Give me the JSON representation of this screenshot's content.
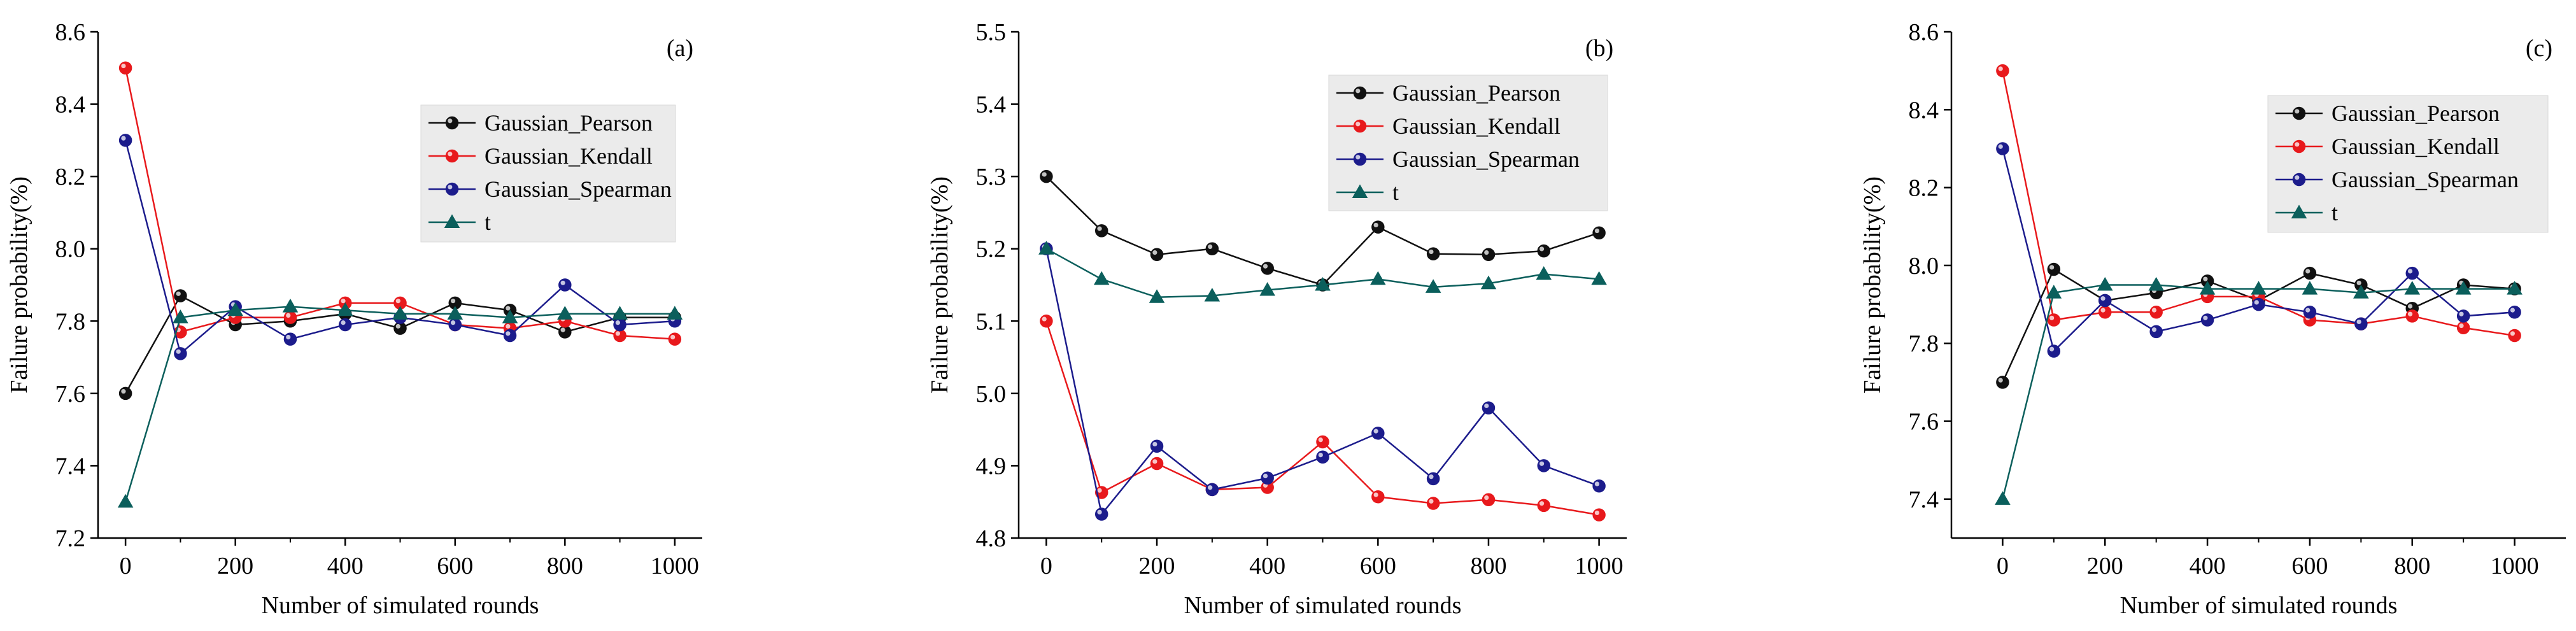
{
  "colors": {
    "Gaussian_Pearson": "#111111",
    "Gaussian_Kendall": "#e8191c",
    "Gaussian_Spearman": "#1c1c8c",
    "t": "#0b5f5c",
    "legend_bg": "#ebebeb"
  },
  "chart_data": [
    {
      "type": "line",
      "label": "(a)",
      "xlabel": "Number of simulated rounds",
      "ylabel": "Failure probability(%)",
      "xlim": [
        -50,
        1050
      ],
      "ylim": [
        7.2,
        8.6
      ],
      "x_ticks": [
        0,
        200,
        400,
        600,
        800,
        1000
      ],
      "y_ticks": [
        7.2,
        7.4,
        7.6,
        7.8,
        8.0,
        8.2,
        8.4,
        8.6
      ],
      "legend_position": "upper-right",
      "x": [
        0,
        100,
        200,
        300,
        400,
        500,
        600,
        700,
        800,
        900,
        1000
      ],
      "series": [
        {
          "name": "Gaussian_Pearson",
          "marker": "circle",
          "values": [
            7.6,
            7.87,
            7.79,
            7.8,
            7.82,
            7.78,
            7.85,
            7.83,
            7.77,
            7.81,
            7.81
          ]
        },
        {
          "name": "Gaussian_Kendall",
          "marker": "circle",
          "values": [
            8.5,
            7.77,
            7.81,
            7.81,
            7.85,
            7.85,
            7.79,
            7.78,
            7.8,
            7.76,
            7.75
          ]
        },
        {
          "name": "Gaussian_Spearman",
          "marker": "circle",
          "values": [
            8.3,
            7.71,
            7.84,
            7.75,
            7.79,
            7.81,
            7.79,
            7.76,
            7.9,
            7.79,
            7.8
          ]
        },
        {
          "name": "t",
          "marker": "triangle",
          "values": [
            7.3,
            7.81,
            7.83,
            7.84,
            7.83,
            7.82,
            7.82,
            7.81,
            7.82,
            7.82,
            7.82
          ]
        }
      ]
    },
    {
      "type": "line",
      "label": "(b)",
      "xlabel": "Number of simulated rounds",
      "ylabel": "Failure probability(%)",
      "xlim": [
        -50,
        1050
      ],
      "ylim": [
        4.8,
        5.5
      ],
      "x_ticks": [
        0,
        200,
        400,
        600,
        800,
        1000
      ],
      "y_ticks": [
        4.8,
        4.9,
        5.0,
        5.1,
        5.2,
        5.3,
        5.4,
        5.5
      ],
      "legend_position": "upper-right",
      "x": [
        0,
        100,
        200,
        300,
        400,
        500,
        600,
        700,
        800,
        900,
        1000
      ],
      "series": [
        {
          "name": "Gaussian_Pearson",
          "marker": "circle",
          "values": [
            5.3,
            5.225,
            5.192,
            5.2,
            5.173,
            5.15,
            5.23,
            5.193,
            5.192,
            5.197,
            5.222
          ]
        },
        {
          "name": "Gaussian_Kendall",
          "marker": "circle",
          "values": [
            5.1,
            4.863,
            4.903,
            4.867,
            4.87,
            4.933,
            4.857,
            4.848,
            4.853,
            4.845,
            4.832
          ]
        },
        {
          "name": "Gaussian_Spearman",
          "marker": "circle",
          "values": [
            5.2,
            4.833,
            4.927,
            4.867,
            4.883,
            4.912,
            4.945,
            4.882,
            4.98,
            4.9,
            4.872
          ]
        },
        {
          "name": "t",
          "marker": "triangle",
          "values": [
            5.2,
            5.158,
            5.133,
            5.135,
            5.143,
            5.15,
            5.158,
            5.147,
            5.152,
            5.165,
            5.158
          ]
        }
      ]
    },
    {
      "type": "line",
      "label": "(c)",
      "xlabel": "Number of simulated rounds",
      "ylabel": "Failure probability(%)",
      "xlim": [
        -100,
        1100
      ],
      "ylim": [
        7.3,
        8.6
      ],
      "x_ticks": [
        0,
        200,
        400,
        600,
        800,
        1000
      ],
      "y_ticks": [
        7.4,
        7.6,
        7.8,
        8.0,
        8.2,
        8.4,
        8.6
      ],
      "legend_position": "upper-right",
      "x": [
        0,
        100,
        200,
        300,
        400,
        500,
        600,
        700,
        800,
        900,
        1000
      ],
      "series": [
        {
          "name": "Gaussian_Pearson",
          "marker": "circle",
          "values": [
            7.7,
            7.99,
            7.91,
            7.93,
            7.96,
            7.91,
            7.98,
            7.95,
            7.89,
            7.95,
            7.94
          ]
        },
        {
          "name": "Gaussian_Kendall",
          "marker": "circle",
          "values": [
            8.5,
            7.86,
            7.88,
            7.88,
            7.92,
            7.92,
            7.86,
            7.85,
            7.87,
            7.84,
            7.82
          ]
        },
        {
          "name": "Gaussian_Spearman",
          "marker": "circle",
          "values": [
            8.3,
            7.78,
            7.91,
            7.83,
            7.86,
            7.9,
            7.88,
            7.85,
            7.98,
            7.87,
            7.88
          ]
        },
        {
          "name": "t",
          "marker": "triangle",
          "values": [
            7.4,
            7.93,
            7.95,
            7.95,
            7.94,
            7.94,
            7.94,
            7.93,
            7.94,
            7.94,
            7.94
          ]
        }
      ]
    }
  ]
}
